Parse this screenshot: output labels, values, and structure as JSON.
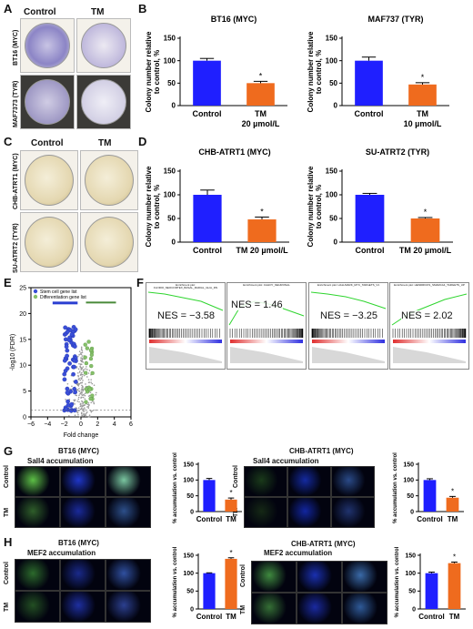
{
  "panels": {
    "A": {
      "label": "A",
      "col_control": "Control",
      "col_tm": "TM",
      "row1": "BT16 (MYC)",
      "row2": "MAF7373 (TYR)"
    },
    "B": {
      "label": "B"
    },
    "C": {
      "label": "C",
      "col_control": "Control",
      "col_tm": "TM",
      "row1": "CHB-ATRT1 (MYC)",
      "row2": "SU-ATRT2 (TYR)"
    },
    "D": {
      "label": "D"
    },
    "E": {
      "label": "E",
      "legend1": "Stem cell gene list",
      "legend2": "Differentiation gene list",
      "ylabel": "-log10 (FDR)",
      "xlabel": "Fold change"
    },
    "F": {
      "label": "F",
      "plots": [
        {
          "title": "Enrichment plot: FLORIO_NEOCORTEX_BASAL_RADIAL_GLIA_DN",
          "nes": "NES = −3.58"
        },
        {
          "title": "Enrichment plot: CAHOY_NEURONAL",
          "nes": "NES = 1.46"
        },
        {
          "title": "Enrichment plot: HALLMARK_MYC_TARGETS_V1",
          "nes": "NES = −3.25"
        },
        {
          "title": "Enrichment plot: HENDRICKS_SMARCA4_TARGETS_UP",
          "nes": "NES = 2.02"
        }
      ]
    },
    "G": {
      "label": "G",
      "left_title": "BT16 (MYC)",
      "left_sub": "Sall4 accumulation",
      "right_title": "CHB-ATRT1 (MYC)",
      "right_sub": "Sall4 accumulation",
      "row1": "Control",
      "row2": "TM"
    },
    "H": {
      "label": "H",
      "left_title": "BT16 (MYC)",
      "left_sub": "MEF2 accumulation",
      "right_title": "CHB-ATRT1 (MYC)",
      "right_sub": "MEF2 accumulation",
      "row1": "Control",
      "row2": "TM"
    }
  },
  "colors": {
    "control": "#1f1fff",
    "tm": "#ef6b1e",
    "axis": "#000000"
  },
  "chart_data": [
    {
      "id": "B1",
      "type": "bar",
      "title": "BT16 (MYC)",
      "ylabel": "Colony number relative to control, %",
      "ylim": [
        0,
        150
      ],
      "yticks": [
        0,
        50,
        100,
        150
      ],
      "categories": [
        "Control",
        "TM\n20 µmol/L"
      ],
      "values": [
        100,
        50
      ],
      "errors": [
        5,
        4
      ],
      "significance": [
        "",
        "*"
      ]
    },
    {
      "id": "B2",
      "type": "bar",
      "title": "MAF737 (TYR)",
      "ylabel": "Colony number relative to control, %",
      "ylim": [
        0,
        150
      ],
      "yticks": [
        0,
        50,
        100,
        150
      ],
      "categories": [
        "Control",
        "TM\n10 µmol/L"
      ],
      "values": [
        100,
        47
      ],
      "errors": [
        8,
        4
      ],
      "significance": [
        "",
        "*"
      ]
    },
    {
      "id": "D1",
      "type": "bar",
      "title": "CHB-ATRT1 (MYC)",
      "ylabel": "Colony number relative to control, %",
      "ylim": [
        0,
        150
      ],
      "yticks": [
        0,
        50,
        100,
        150
      ],
      "categories": [
        "Control",
        "TM 20 µmol/L"
      ],
      "values": [
        100,
        48
      ],
      "errors": [
        10,
        5
      ],
      "significance": [
        "",
        "*"
      ]
    },
    {
      "id": "D2",
      "type": "bar",
      "title": "SU-ATRT2 (TYR)",
      "ylabel": "Colony number relative to control, %",
      "ylim": [
        0,
        150
      ],
      "yticks": [
        0,
        50,
        100,
        150
      ],
      "categories": [
        "Control",
        "TM 20 µmol/L"
      ],
      "values": [
        100,
        50
      ],
      "errors": [
        3,
        2
      ],
      "significance": [
        "",
        "*"
      ]
    },
    {
      "id": "E",
      "type": "scatter",
      "xlabel": "Fold change",
      "ylabel": "-log10 (FDR)",
      "xlim": [
        -6,
        6
      ],
      "ylim": [
        0,
        25
      ],
      "xticks": [
        -6,
        -4,
        -2,
        0,
        2,
        4,
        6
      ],
      "yticks": [
        0,
        5,
        10,
        15,
        20,
        25
      ]
    },
    {
      "id": "G1",
      "type": "bar",
      "ylabel": "% accumulation vs. control",
      "ylim": [
        0,
        150
      ],
      "yticks": [
        0,
        50,
        100,
        150
      ],
      "categories": [
        "Control",
        "TM"
      ],
      "values": [
        100,
        38
      ],
      "errors": [
        5,
        5
      ],
      "significance": [
        "",
        "*"
      ]
    },
    {
      "id": "G2",
      "type": "bar",
      "ylabel": "% accumulation vs. control",
      "ylim": [
        0,
        150
      ],
      "yticks": [
        0,
        50,
        100,
        150
      ],
      "categories": [
        "Control",
        "TM"
      ],
      "values": [
        100,
        44
      ],
      "errors": [
        4,
        4
      ],
      "significance": [
        "",
        "*"
      ]
    },
    {
      "id": "H1",
      "type": "bar",
      "ylabel": "% accumulation vs. control",
      "ylim": [
        0,
        150
      ],
      "yticks": [
        0,
        50,
        100,
        150
      ],
      "categories": [
        "Control",
        "TM"
      ],
      "values": [
        100,
        140
      ],
      "errors": [
        1,
        3
      ],
      "significance": [
        "",
        "*"
      ]
    },
    {
      "id": "H2",
      "type": "bar",
      "ylabel": "% accumulation vs. control",
      "ylim": [
        0,
        150
      ],
      "yticks": [
        0,
        50,
        100,
        150
      ],
      "categories": [
        "Control",
        "TM"
      ],
      "values": [
        100,
        128
      ],
      "errors": [
        3,
        3
      ],
      "significance": [
        "",
        "*"
      ]
    }
  ]
}
